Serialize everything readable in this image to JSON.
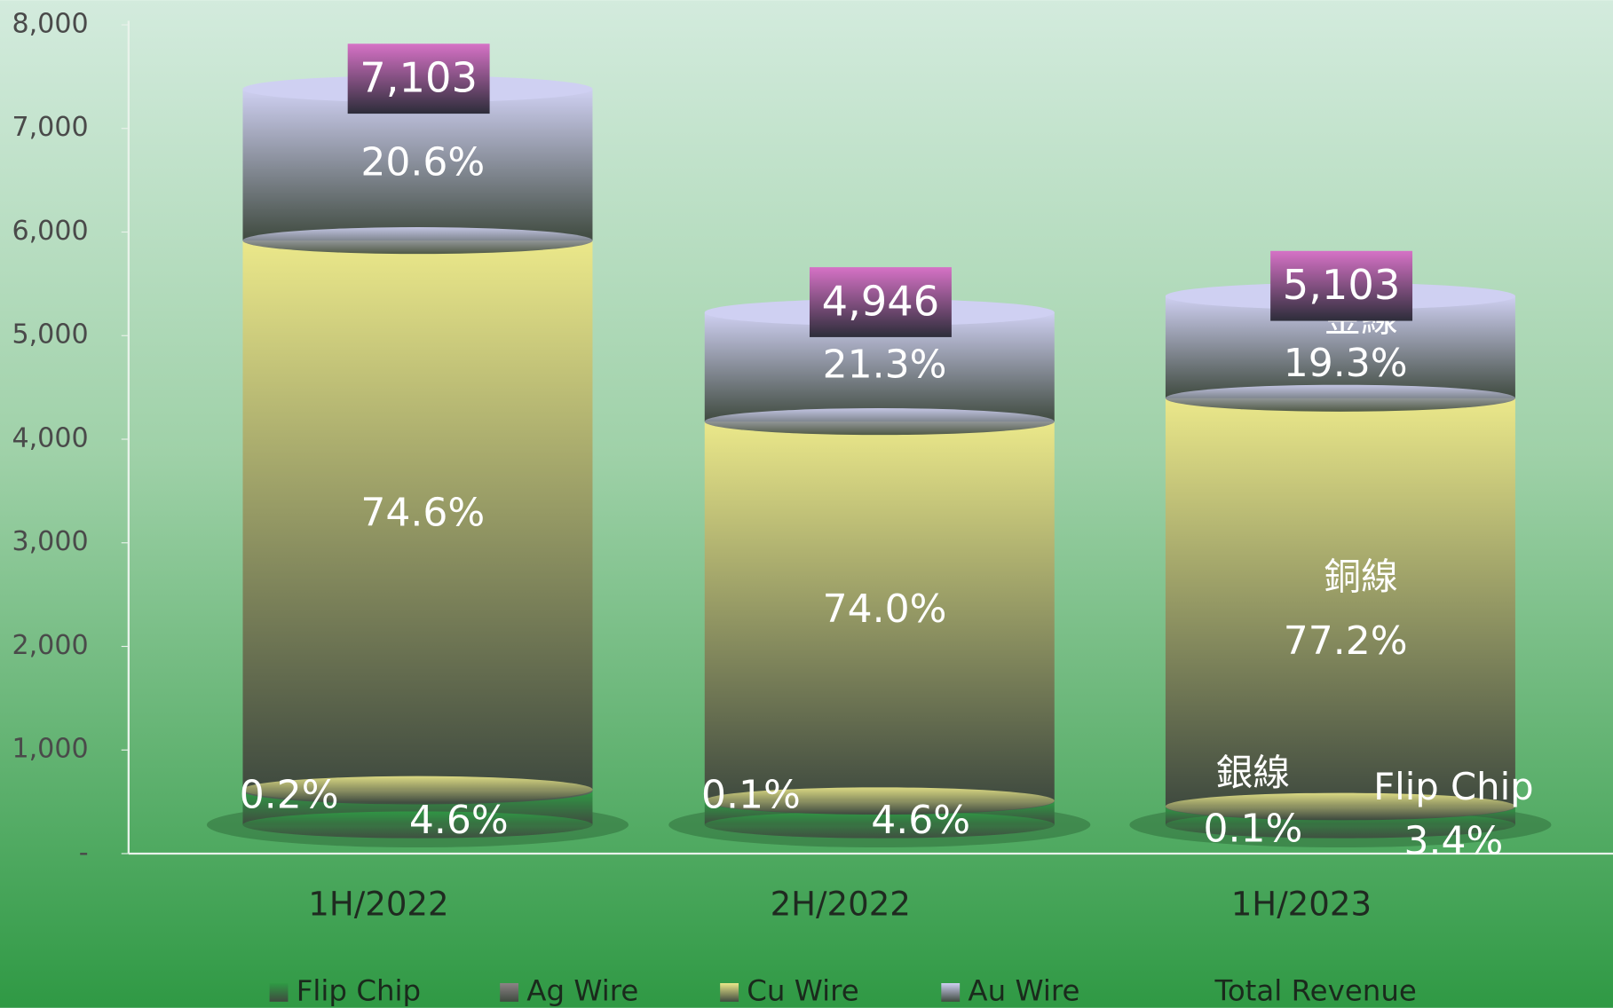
{
  "chart_data": {
    "type": "stacked-cylinder",
    "categories": [
      "1H/2022",
      "2H/2022",
      "1H/2023"
    ],
    "series": [
      {
        "name": "Flip Chip",
        "color": "#2f9a45",
        "values": [
          4.6,
          4.6,
          3.4
        ],
        "value_labels": [
          "4.6%",
          "4.6%",
          "3.4%"
        ]
      },
      {
        "name": "Ag Wire",
        "color": "#8c8386",
        "values": [
          0.2,
          0.1,
          0.1
        ],
        "value_labels": [
          "0.2%",
          "0.1%",
          "0.1%"
        ]
      },
      {
        "name": "Cu Wire",
        "color": "#ebe88a",
        "values": [
          74.6,
          74.0,
          77.2
        ],
        "value_labels": [
          "74.6%",
          "74.0%",
          "77.2%"
        ]
      },
      {
        "name": "Au Wire",
        "color": "#cfd0f2",
        "values": [
          20.6,
          21.3,
          19.3
        ],
        "value_labels": [
          "20.6%",
          "21.3%",
          "19.3%"
        ]
      },
      {
        "name": "Total Revenue",
        "color": "#c565b8",
        "values": [
          7103,
          4946,
          5103
        ],
        "value_labels": [
          "7,103",
          "4,946",
          "5,103"
        ]
      }
    ],
    "annotations": [
      "金線",
      "銅線",
      "銀線",
      "Flip Chip"
    ],
    "ylim": [
      0,
      8000
    ],
    "yticks": [
      {
        "value": 0,
        "label": "-"
      },
      {
        "value": 1000,
        "label": "1,000"
      },
      {
        "value": 2000,
        "label": "2,000"
      },
      {
        "value": 3000,
        "label": "3,000"
      },
      {
        "value": 4000,
        "label": "4,000"
      },
      {
        "value": 5000,
        "label": "5,000"
      },
      {
        "value": 6000,
        "label": "6,000"
      },
      {
        "value": 7000,
        "label": "7,000"
      },
      {
        "value": 8000,
        "label": "8,000"
      }
    ]
  }
}
